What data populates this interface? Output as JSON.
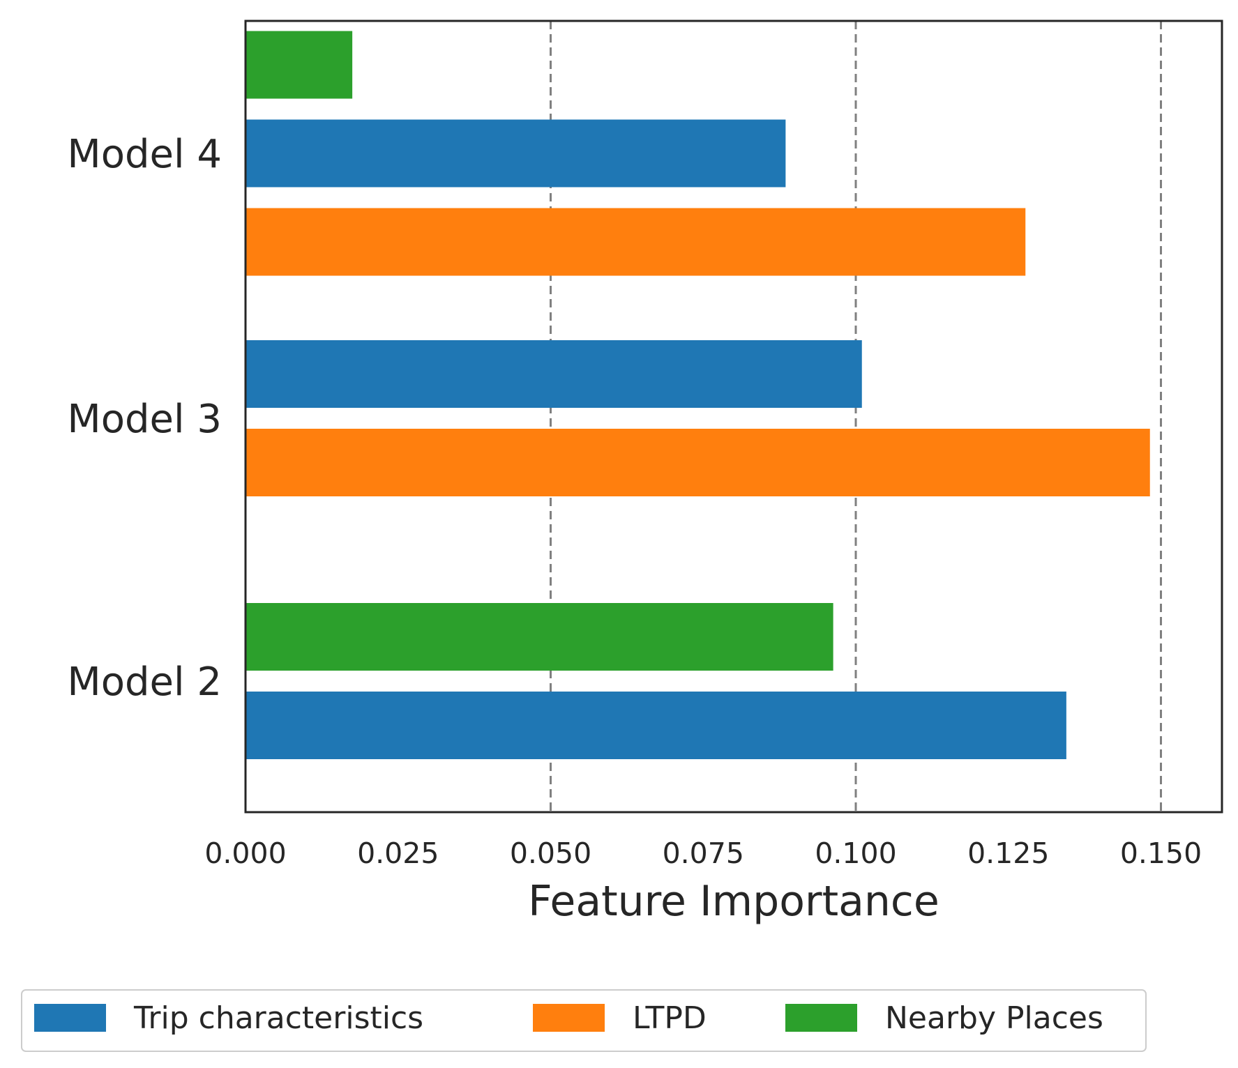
{
  "chart_data": {
    "type": "bar",
    "orientation": "horizontal",
    "xlabel": "Feature Importance",
    "ylabel": "",
    "xlim": [
      0,
      0.16
    ],
    "xticks": [
      "0.000",
      "0.025",
      "0.050",
      "0.075",
      "0.100",
      "0.125",
      "0.150"
    ],
    "grid": "vertical dashed lines at 0.050, 0.100, 0.150",
    "legend_position": "bottom",
    "categories": [
      "Model 4",
      "Model 3",
      "Model 2"
    ],
    "series": [
      {
        "name": "Trip characteristics",
        "color": "#1f77b4",
        "values": [
          0.0885,
          0.101,
          0.1345
        ]
      },
      {
        "name": "LTPD",
        "color": "#ff7f0e",
        "values": [
          0.1278,
          0.1482,
          null
        ]
      },
      {
        "name": "Nearby Places",
        "color": "#2ca02c",
        "values": [
          0.0175,
          null,
          0.0963
        ]
      }
    ]
  }
}
